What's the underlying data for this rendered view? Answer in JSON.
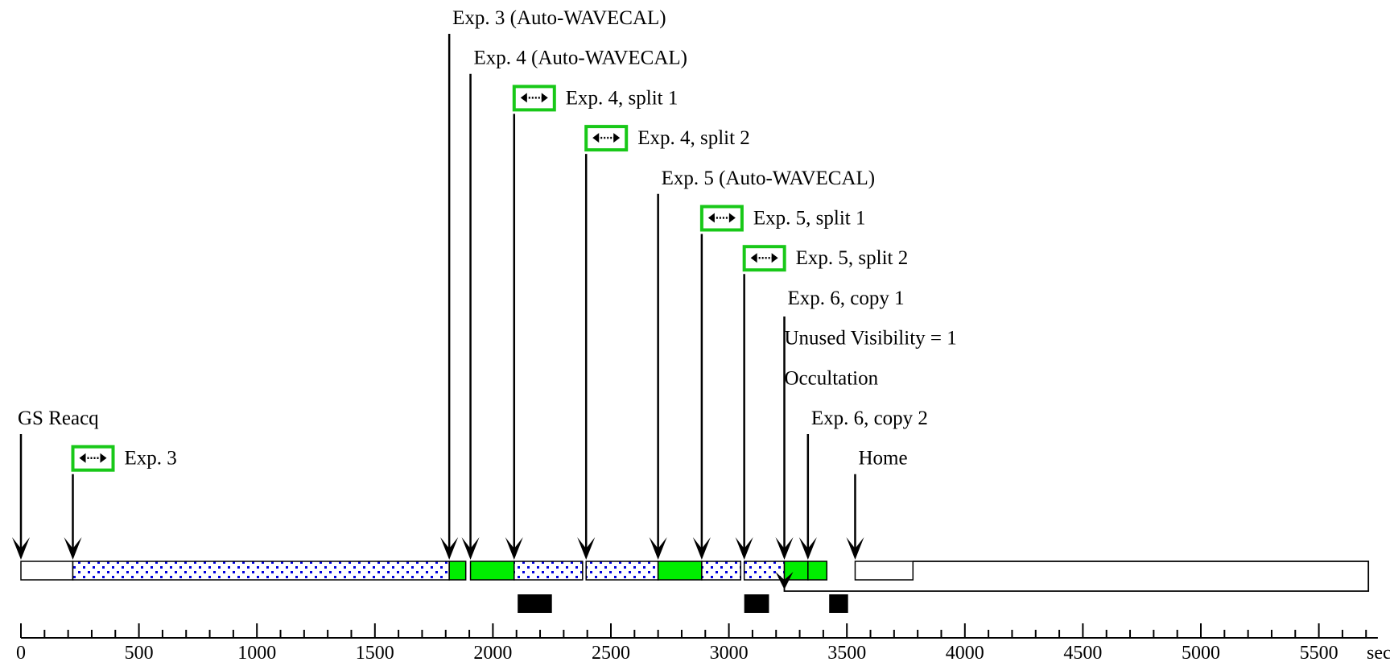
{
  "diagram": {
    "unit_label": "sec",
    "axis": {
      "min": 0,
      "max": 5750,
      "major_step": 500,
      "minor_step": 100
    },
    "tick_labels": [
      "0",
      "500",
      "1000",
      "1500",
      "2000",
      "2500",
      "3000",
      "3500",
      "4000",
      "4500",
      "5000",
      "5500"
    ],
    "colors": {
      "exposure_fill": "#00ee00",
      "exposure_stroke": "#18b818",
      "dot": "#0000dd",
      "line": "#000000"
    },
    "icon": "dither-arrows-icon",
    "events": [
      {
        "id": "gs-reacq",
        "label": "GS Reacq",
        "time": 0,
        "icon": false
      },
      {
        "id": "exp3",
        "label": "Exp. 3",
        "time": 220,
        "icon": true
      },
      {
        "id": "exp3-wavecal",
        "label": "Exp. 3 (Auto-WAVECAL)",
        "time": 1815,
        "icon": false
      },
      {
        "id": "exp4-wavecal",
        "label": "Exp. 4 (Auto-WAVECAL)",
        "time": 1905,
        "icon": false
      },
      {
        "id": "exp4-split1",
        "label": "Exp. 4, split 1",
        "time": 2090,
        "icon": true
      },
      {
        "id": "exp4-split2",
        "label": "Exp. 4, split 2",
        "time": 2395,
        "icon": true
      },
      {
        "id": "exp5-wavecal",
        "label": "Exp. 5 (Auto-WAVECAL)",
        "time": 2700,
        "icon": false
      },
      {
        "id": "exp5-split1",
        "label": "Exp. 5, split 1",
        "time": 2885,
        "icon": true
      },
      {
        "id": "exp5-split2",
        "label": "Exp. 5, split 2",
        "time": 3065,
        "icon": true
      },
      {
        "id": "exp6-copy1",
        "label": "Exp. 6, copy 1",
        "time": 3235,
        "icon": false
      },
      {
        "id": "unused-visibility",
        "label": "Unused Visibility = 1",
        "time": 3235,
        "icon": false
      },
      {
        "id": "occultation",
        "label": "Occultation",
        "time": 3235,
        "icon": false
      },
      {
        "id": "exp6-copy2",
        "label": "Exp. 6, copy 2",
        "time": 3335,
        "icon": false
      },
      {
        "id": "home",
        "label": "Home",
        "time": 3535,
        "icon": false
      }
    ],
    "segments": [
      {
        "kind": "open",
        "start": 0,
        "end": 220
      },
      {
        "kind": "dotted",
        "start": 220,
        "end": 1815
      },
      {
        "kind": "green",
        "start": 1815,
        "end": 1885
      },
      {
        "kind": "green",
        "start": 1905,
        "end": 2090
      },
      {
        "kind": "dotted",
        "start": 2090,
        "end": 2380
      },
      {
        "kind": "dotted",
        "start": 2395,
        "end": 2700
      },
      {
        "kind": "green",
        "start": 2700,
        "end": 2885
      },
      {
        "kind": "dotted",
        "start": 2885,
        "end": 3050
      },
      {
        "kind": "dotted",
        "start": 3065,
        "end": 3235
      },
      {
        "kind": "green",
        "start": 3235,
        "end": 3335
      },
      {
        "kind": "green",
        "start": 3335,
        "end": 3415
      },
      {
        "kind": "open",
        "start": 3535,
        "end": 3780
      }
    ],
    "unused_visibility_bar": {
      "start": 3235,
      "end": 5710
    },
    "black_blocks": [
      {
        "start": 2105,
        "end": 2250
      },
      {
        "start": 3065,
        "end": 3170
      },
      {
        "start": 3425,
        "end": 3505
      }
    ]
  }
}
